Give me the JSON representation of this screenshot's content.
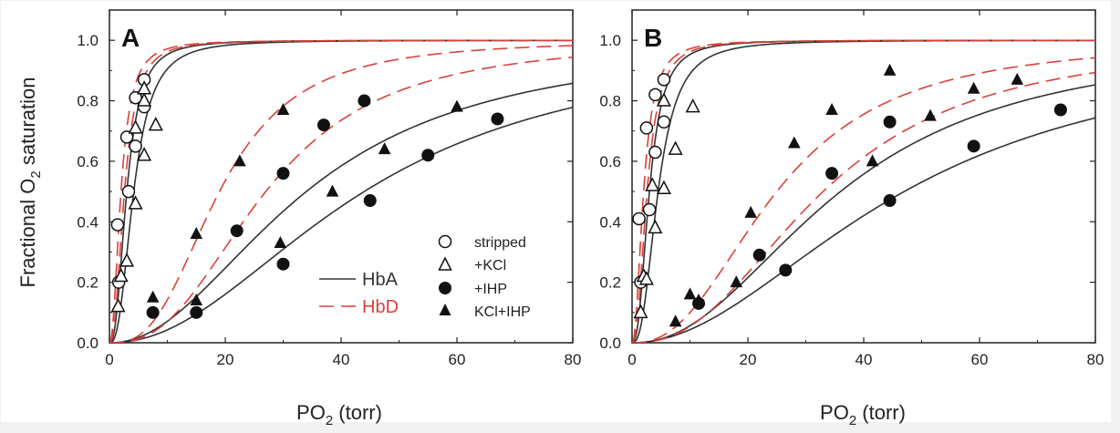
{
  "figure": {
    "ylabel": "Fractional O",
    "ylabel_sub": "2",
    "ylabel_rest": " saturation",
    "xlabel": "PO",
    "xlabel_sub": "2",
    "xlabel_rest": " (torr)"
  },
  "legend": {
    "line_hba": "HbA",
    "line_hbd": "HbD",
    "markers": [
      {
        "shape": "open-circle",
        "label": "stripped"
      },
      {
        "shape": "open-triangle",
        "label": "+KCl"
      },
      {
        "shape": "filled-circle",
        "label": "+IHP"
      },
      {
        "shape": "filled-triangle",
        "label": "KCl+IHP"
      }
    ]
  },
  "colors": {
    "hba": "#333333",
    "hbd": "#d9413b",
    "marker": "#111111",
    "axis": "#222222"
  },
  "chart_data": [
    {
      "type": "line",
      "panel_label": "A",
      "xlim": [
        0,
        80
      ],
      "ylim": [
        0,
        1.1
      ],
      "xticks": [
        "0",
        "20",
        "40",
        "60",
        "80"
      ],
      "yticks": [
        "0.0",
        "0.2",
        "0.4",
        "0.6",
        "0.8",
        "1.0"
      ],
      "curves": [
        {
          "line": "HbA",
          "p50": 3.0,
          "n": 2.5
        },
        {
          "line": "HbA",
          "p50": 4.2,
          "n": 2.6
        },
        {
          "line": "HbA",
          "p50": 34,
          "n": 2.1
        },
        {
          "line": "HbA",
          "p50": 44,
          "n": 2.1
        },
        {
          "line": "HbD",
          "p50": 2.0,
          "n": 2.2
        },
        {
          "line": "HbD",
          "p50": 2.6,
          "n": 2.4
        },
        {
          "line": "HbD",
          "p50": 19,
          "n": 2.8
        },
        {
          "line": "HbD",
          "p50": 27,
          "n": 2.6
        }
      ],
      "series": [
        {
          "name": "stripped",
          "x": [
            1.4,
            1.6,
            3,
            3.3,
            4.5,
            4.5,
            6,
            6
          ],
          "y": [
            0.39,
            0.2,
            0.68,
            0.5,
            0.81,
            0.65,
            0.78,
            0.87
          ]
        },
        {
          "name": "+KCl",
          "x": [
            1.5,
            2,
            3,
            4.5,
            4.5,
            6,
            6,
            6,
            8
          ],
          "y": [
            0.12,
            0.22,
            0.27,
            0.46,
            0.71,
            0.62,
            0.8,
            0.84,
            0.72
          ]
        },
        {
          "name": "+IHP",
          "x": [
            7.5,
            15,
            22,
            30,
            30,
            37,
            45,
            44,
            55,
            67
          ],
          "y": [
            0.1,
            0.1,
            0.37,
            0.26,
            0.56,
            0.72,
            0.47,
            0.8,
            0.62,
            0.74
          ]
        },
        {
          "name": "KCl+IHP",
          "x": [
            7.5,
            15,
            15,
            22.5,
            29.5,
            30,
            38.5,
            47.5,
            60
          ],
          "y": [
            0.15,
            0.14,
            0.36,
            0.6,
            0.33,
            0.77,
            0.5,
            0.64,
            0.78
          ]
        }
      ]
    },
    {
      "type": "line",
      "panel_label": "B",
      "xlim": [
        0,
        80
      ],
      "ylim": [
        0,
        1.1
      ],
      "xticks": [
        "0",
        "20",
        "40",
        "60",
        "80"
      ],
      "yticks": [
        "0.0",
        "0.2",
        "0.4",
        "0.6",
        "0.8",
        "1.0"
      ],
      "curves": [
        {
          "line": "HbA",
          "p50": 3.0,
          "n": 2.5
        },
        {
          "line": "HbA",
          "p50": 4.5,
          "n": 2.6
        },
        {
          "line": "HbA",
          "p50": 36,
          "n": 2.2
        },
        {
          "line": "HbA",
          "p50": 47,
          "n": 2.0
        },
        {
          "line": "HbD",
          "p50": 2.0,
          "n": 2.2
        },
        {
          "line": "HbD",
          "p50": 2.6,
          "n": 2.4
        },
        {
          "line": "HbD",
          "p50": 25,
          "n": 2.4
        },
        {
          "line": "HbD",
          "p50": 33,
          "n": 2.4
        }
      ],
      "series": [
        {
          "name": "stripped",
          "x": [
            1.2,
            1.5,
            2.5,
            3,
            4,
            4,
            5.5,
            5.5
          ],
          "y": [
            0.41,
            0.2,
            0.71,
            0.44,
            0.82,
            0.63,
            0.73,
            0.87
          ]
        },
        {
          "name": "+KCl",
          "x": [
            1.5,
            2,
            2.5,
            4,
            5.5,
            5.5,
            7.5,
            10.5,
            3.5
          ],
          "y": [
            0.1,
            0.22,
            0.21,
            0.38,
            0.51,
            0.8,
            0.64,
            0.78,
            0.52
          ]
        },
        {
          "name": "+IHP",
          "x": [
            11.5,
            22,
            26.5,
            34.5,
            44.5,
            44.5,
            59,
            74
          ],
          "y": [
            0.13,
            0.29,
            0.24,
            0.56,
            0.47,
            0.73,
            0.65,
            0.77
          ]
        },
        {
          "name": "KCl+IHP",
          "x": [
            7.5,
            10,
            11.5,
            18,
            20.5,
            28,
            34.5,
            41.5,
            44.5,
            51.5,
            59,
            66.5
          ],
          "y": [
            0.07,
            0.16,
            0.14,
            0.2,
            0.43,
            0.66,
            0.77,
            0.6,
            0.9,
            0.75,
            0.84,
            0.87
          ]
        }
      ]
    }
  ]
}
